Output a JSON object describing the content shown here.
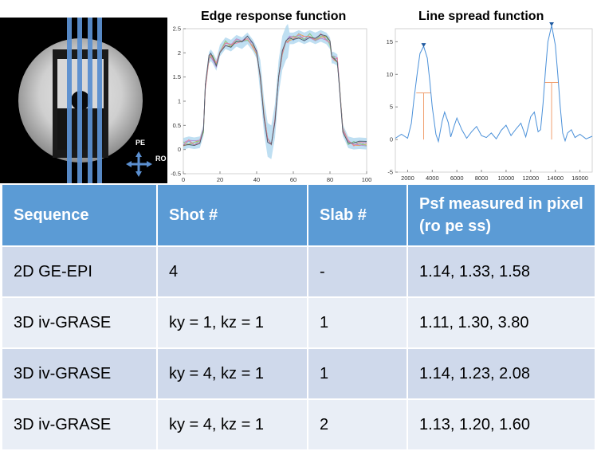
{
  "mri_panel": {
    "pe_label": "PE",
    "ro_label": "RO"
  },
  "chart_data": [
    {
      "type": "line",
      "title": "Edge response function",
      "xlabel": "",
      "ylabel": "",
      "xlim": [
        0,
        100
      ],
      "ylim": [
        -0.5,
        2.5
      ],
      "x_ticks": [
        0,
        20,
        40,
        60,
        80,
        100
      ],
      "y_ticks": [
        -0.5,
        0,
        0.5,
        1,
        1.5,
        2,
        2.5
      ],
      "grid": false,
      "shaded_band": true,
      "series_colors": [
        "#7fa7e0",
        "#e6a050",
        "#b58ad6",
        "#8ccf7a",
        "#e87f9a",
        "#4c5a6a"
      ],
      "x": [
        0,
        3,
        6,
        9,
        11,
        12,
        14,
        15,
        16,
        18,
        20,
        23,
        26,
        29,
        32,
        35,
        38,
        40,
        42,
        44,
        46,
        48,
        50,
        52,
        54,
        56,
        57,
        58,
        60,
        63,
        66,
        69,
        72,
        75,
        78,
        80,
        81,
        82,
        84,
        85,
        87,
        90,
        93,
        96,
        100
      ],
      "values": [
        0.12,
        0.15,
        0.13,
        0.15,
        0.4,
        1.3,
        1.9,
        1.95,
        1.9,
        1.75,
        2.05,
        2.2,
        2.15,
        2.25,
        2.2,
        2.3,
        2.15,
        2.0,
        1.5,
        0.7,
        0.2,
        0.15,
        0.6,
        1.5,
        2.0,
        2.2,
        2.25,
        2.3,
        2.3,
        2.35,
        2.3,
        2.35,
        2.3,
        2.35,
        2.3,
        2.2,
        1.9,
        1.9,
        1.85,
        1.4,
        0.4,
        0.15,
        0.12,
        0.13,
        0.12
      ]
    },
    {
      "type": "line",
      "title": "Line spread function",
      "xlabel": "",
      "ylabel": "",
      "xlim": [
        1000,
        17000
      ],
      "ylim": [
        -5,
        17
      ],
      "x_ticks": [
        2000,
        4000,
        6000,
        8000,
        10000,
        12000,
        14000,
        16000
      ],
      "y_ticks": [
        -5,
        0,
        5,
        10,
        15
      ],
      "grid": false,
      "peaks": [
        {
          "x": 3300,
          "y": 14.3,
          "half_max": 7.15,
          "half_width_left": 2700,
          "half_width_right": 3900
        },
        {
          "x": 13700,
          "y": 17.5,
          "half_max": 8.75,
          "half_width_left": 13150,
          "half_width_right": 14250
        }
      ],
      "x": [
        1000,
        1500,
        2000,
        2300,
        2500,
        2800,
        3000,
        3300,
        3600,
        3800,
        4000,
        4300,
        4500,
        4800,
        5000,
        5300,
        5500,
        5800,
        6000,
        6400,
        6800,
        7200,
        7600,
        8000,
        8400,
        8800,
        9200,
        9600,
        10000,
        10400,
        10800,
        11200,
        11600,
        12000,
        12300,
        12600,
        12800,
        13000,
        13200,
        13400,
        13700,
        14000,
        14200,
        14400,
        14600,
        14800,
        15000,
        15300,
        15600,
        16000,
        16500,
        17000
      ],
      "values": [
        0.2,
        0.8,
        0.2,
        2.5,
        6.0,
        10.5,
        13.2,
        14.3,
        12.5,
        9.0,
        5.0,
        0.8,
        -0.3,
        2.8,
        4.2,
        2.6,
        0.4,
        2.2,
        3.3,
        1.5,
        0.2,
        1.2,
        2.0,
        0.6,
        0.3,
        1.0,
        0.1,
        1.4,
        2.2,
        0.6,
        1.6,
        2.5,
        0.4,
        3.5,
        4.2,
        1.2,
        1.5,
        5.5,
        10.5,
        15.0,
        17.5,
        14.5,
        10.0,
        5.0,
        1.0,
        -0.2,
        1.0,
        1.5,
        0.3,
        0.8,
        0.1,
        0.5
      ]
    }
  ],
  "table": {
    "headers": [
      "Sequence",
      "Shot #",
      "Slab #",
      "Psf measured in pixel (ro pe ss)"
    ],
    "rows": [
      [
        "2D GE-EPI",
        "4",
        "-",
        "1.14, 1.33, 1.58"
      ],
      [
        "3D iv-GRASE",
        "ky = 1, kz = 1",
        "1",
        "1.11, 1.30, 3.80"
      ],
      [
        "3D iv-GRASE",
        "ky = 4, kz = 1",
        "1",
        "1.14, 1.23, 2.08"
      ],
      [
        "3D iv-GRASE",
        "ky = 4, kz = 1",
        "2",
        "1.13, 1.20, 1.60"
      ]
    ]
  }
}
